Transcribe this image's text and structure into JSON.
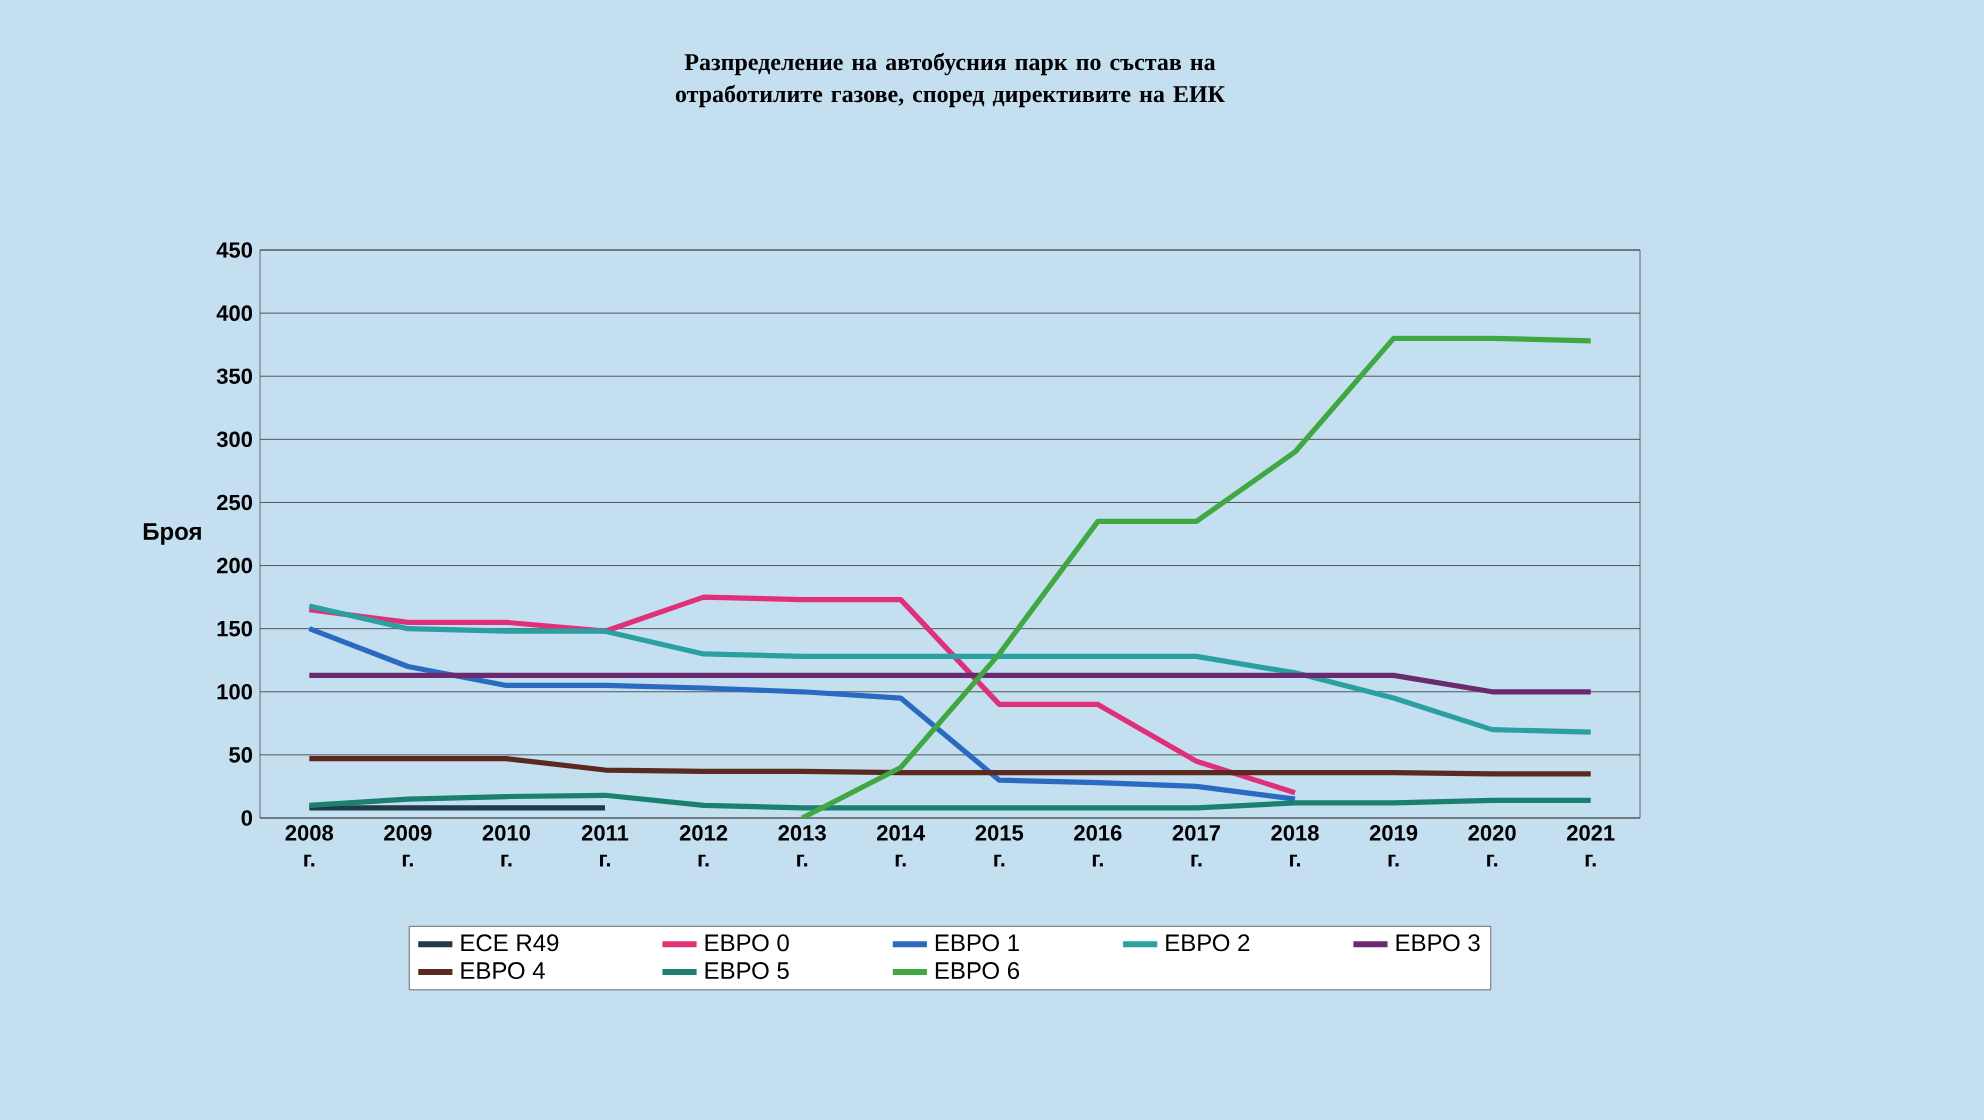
{
  "chart_data": {
    "type": "line",
    "title": "Разпределение на автобусния парк по състав на отработилите газове, според директивите на ЕИК",
    "ylabel": "Броя",
    "categories": [
      "2008 г.",
      "2009 г.",
      "2010 г.",
      "2011 г.",
      "2012 г.",
      "2013 г.",
      "2014 г.",
      "2015 г.",
      "2016 г.",
      "2017 г.",
      "2018 г.",
      "2019 г.",
      "2020 г.",
      "2021 г."
    ],
    "ylim": [
      0,
      450
    ],
    "yticks": [
      0,
      50,
      100,
      150,
      200,
      250,
      300,
      350,
      400,
      450
    ],
    "grid": "y",
    "legend": "bottom",
    "marker": "none",
    "line_style": "solid",
    "series": [
      {
        "name": "ECE R49",
        "color": "#1f3a4a",
        "values": [
          8,
          8,
          8,
          8,
          null,
          null,
          null,
          null,
          null,
          null,
          null,
          null,
          null,
          null
        ]
      },
      {
        "name": "ЕВРО 0",
        "color": "#e0307a",
        "values": [
          165,
          155,
          155,
          148,
          175,
          173,
          173,
          90,
          90,
          45,
          20,
          null,
          null,
          null
        ]
      },
      {
        "name": "ЕВРО 1",
        "color": "#2a6ac0",
        "values": [
          150,
          120,
          105,
          105,
          103,
          100,
          95,
          30,
          28,
          25,
          15,
          null,
          null,
          null
        ]
      },
      {
        "name": "ЕВРО 2",
        "color": "#2aa0a0",
        "values": [
          168,
          150,
          148,
          148,
          130,
          128,
          128,
          128,
          128,
          128,
          115,
          95,
          70,
          68
        ]
      },
      {
        "name": "ЕВРО 3",
        "color": "#6a2a70",
        "values": [
          113,
          113,
          113,
          113,
          113,
          113,
          113,
          113,
          113,
          113,
          113,
          113,
          100,
          100
        ]
      },
      {
        "name": "ЕВРО 4",
        "color": "#5a2a20",
        "values": [
          47,
          47,
          47,
          38,
          37,
          37,
          36,
          36,
          36,
          36,
          36,
          36,
          35,
          35
        ]
      },
      {
        "name": "ЕВРО 5",
        "color": "#1a8070",
        "values": [
          10,
          15,
          17,
          18,
          10,
          8,
          8,
          8,
          8,
          8,
          12,
          12,
          14,
          14
        ]
      },
      {
        "name": "ЕВРО 6",
        "color": "#40a840",
        "values": [
          null,
          null,
          null,
          null,
          null,
          0,
          40,
          130,
          235,
          235,
          290,
          380,
          380,
          378
        ]
      }
    ]
  }
}
